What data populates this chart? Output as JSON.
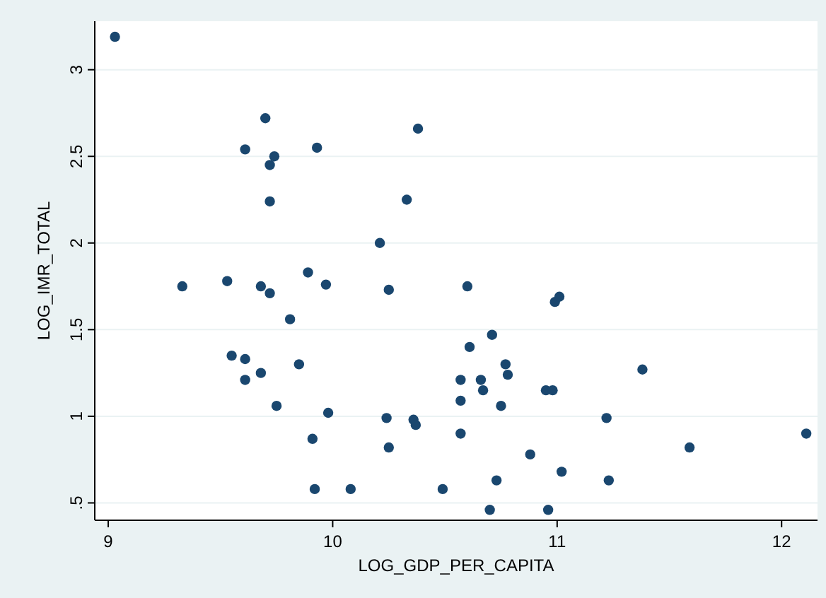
{
  "chart_data": {
    "type": "scatter",
    "xlabel": "LOG_GDP_PER_CAPITA",
    "ylabel": "LOG_IMR_TOTAL",
    "xlim": [
      8.94,
      12.16
    ],
    "ylim": [
      0.4,
      3.28
    ],
    "xticks": [
      9,
      10,
      11,
      12
    ],
    "yticks": [
      {
        "value": 0.5,
        "label": ".5"
      },
      1,
      1.5,
      2,
      2.5,
      3
    ],
    "grid": "y",
    "marker": "circle",
    "series": [
      {
        "color": "#1a476f",
        "x": [
          9.03,
          9.7,
          9.61,
          9.74,
          9.72,
          9.93,
          10.38,
          9.72,
          10.33,
          10.21,
          9.33,
          9.53,
          9.68,
          9.72,
          9.89,
          9.97,
          10.25,
          10.6,
          10.99,
          11.01,
          9.81,
          9.55,
          9.61,
          9.68,
          9.61,
          9.85,
          9.75,
          9.98,
          10.24,
          10.36,
          10.37,
          9.91,
          10.25,
          9.92,
          10.08,
          10.71,
          10.61,
          10.77,
          10.78,
          10.57,
          10.66,
          10.67,
          10.95,
          10.98,
          10.57,
          10.75,
          11.38,
          11.22,
          10.57,
          12.11,
          11.59,
          10.88,
          11.02,
          11.23,
          10.73,
          10.49,
          10.7,
          10.96
        ],
        "values": [
          3.19,
          2.72,
          2.54,
          2.5,
          2.45,
          2.55,
          2.66,
          2.24,
          2.25,
          2.0,
          1.75,
          1.78,
          1.75,
          1.71,
          1.83,
          1.76,
          1.73,
          1.75,
          1.66,
          1.69,
          1.56,
          1.35,
          1.33,
          1.25,
          1.21,
          1.3,
          1.06,
          1.02,
          0.99,
          0.98,
          0.95,
          0.87,
          0.82,
          0.58,
          0.58,
          1.47,
          1.4,
          1.3,
          1.24,
          1.21,
          1.21,
          1.15,
          1.15,
          1.15,
          1.09,
          1.06,
          1.27,
          0.99,
          0.9,
          0.9,
          0.82,
          0.78,
          0.68,
          0.63,
          0.63,
          0.58,
          0.46,
          0.46
        ]
      }
    ]
  }
}
